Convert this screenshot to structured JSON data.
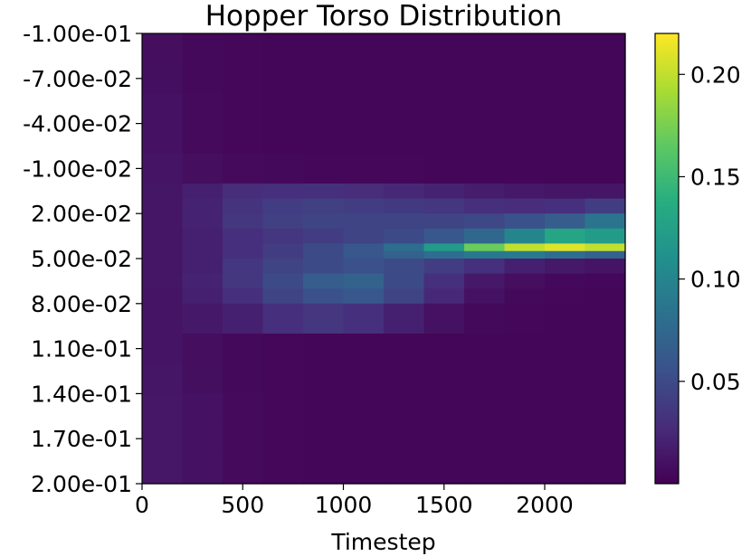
{
  "chart_data": {
    "type": "heatmap",
    "title": "Hopper Torso Distribution",
    "xlabel": "Timestep",
    "ylabel": "",
    "xlim": [
      0,
      2400
    ],
    "ylim": [
      -0.1,
      0.2
    ],
    "x_ticks": [
      {
        "value": 0,
        "label": "0"
      },
      {
        "value": 500,
        "label": "500"
      },
      {
        "value": 1000,
        "label": "1000"
      },
      {
        "value": 1500,
        "label": "1500"
      },
      {
        "value": 2000,
        "label": "2000"
      }
    ],
    "y_ticks": [
      {
        "value": -0.1,
        "label": "-1.00e-01"
      },
      {
        "value": -0.07,
        "label": "-7.00e-02"
      },
      {
        "value": -0.04,
        "label": "-4.00e-02"
      },
      {
        "value": -0.01,
        "label": "-1.00e-02"
      },
      {
        "value": 0.02,
        "label": "2.00e-02"
      },
      {
        "value": 0.05,
        "label": "5.00e-02"
      },
      {
        "value": 0.08,
        "label": "8.00e-02"
      },
      {
        "value": 0.11,
        "label": "1.10e-01"
      },
      {
        "value": 0.14,
        "label": "1.40e-01"
      },
      {
        "value": 0.17,
        "label": "1.70e-01"
      },
      {
        "value": 0.2,
        "label": "2.00e-01"
      }
    ],
    "colorbar": {
      "colormap": "viridis",
      "range": [
        0.0,
        0.22
      ],
      "ticks": [
        {
          "value": 0.05,
          "label": "0.05"
        },
        {
          "value": 0.1,
          "label": "0.10"
        },
        {
          "value": 0.15,
          "label": "0.15"
        },
        {
          "value": 0.2,
          "label": "0.20"
        }
      ]
    },
    "x_bins": [
      0,
      200,
      400,
      600,
      800,
      1000,
      1200,
      1400,
      1600,
      1800,
      2000,
      2200,
      2400
    ],
    "y_bins": [
      -0.1,
      -0.08,
      -0.06,
      -0.04,
      -0.02,
      0.0,
      0.01,
      0.02,
      0.03,
      0.04,
      0.045,
      0.05,
      0.06,
      0.07,
      0.08,
      0.1,
      0.12,
      0.14,
      0.16,
      0.18,
      0.2
    ],
    "values": [
      [
        0.008,
        0.005,
        0.004,
        0.003,
        0.003,
        0.003,
        0.003,
        0.003,
        0.003,
        0.003,
        0.003,
        0.003
      ],
      [
        0.009,
        0.005,
        0.004,
        0.003,
        0.003,
        0.003,
        0.003,
        0.003,
        0.003,
        0.003,
        0.003,
        0.003
      ],
      [
        0.01,
        0.006,
        0.004,
        0.003,
        0.003,
        0.003,
        0.003,
        0.003,
        0.003,
        0.003,
        0.003,
        0.003
      ],
      [
        0.01,
        0.006,
        0.004,
        0.003,
        0.003,
        0.003,
        0.003,
        0.003,
        0.003,
        0.003,
        0.003,
        0.003
      ],
      [
        0.012,
        0.008,
        0.006,
        0.005,
        0.004,
        0.004,
        0.004,
        0.003,
        0.003,
        0.003,
        0.003,
        0.003
      ],
      [
        0.013,
        0.02,
        0.028,
        0.03,
        0.03,
        0.028,
        0.025,
        0.022,
        0.018,
        0.015,
        0.013,
        0.013
      ],
      [
        0.013,
        0.022,
        0.033,
        0.04,
        0.042,
        0.04,
        0.038,
        0.035,
        0.03,
        0.028,
        0.03,
        0.04
      ],
      [
        0.013,
        0.022,
        0.035,
        0.042,
        0.045,
        0.045,
        0.045,
        0.045,
        0.048,
        0.055,
        0.065,
        0.085
      ],
      [
        0.013,
        0.02,
        0.03,
        0.035,
        0.04,
        0.045,
        0.05,
        0.06,
        0.075,
        0.1,
        0.13,
        0.12
      ],
      [
        0.013,
        0.02,
        0.03,
        0.04,
        0.05,
        0.06,
        0.08,
        0.12,
        0.17,
        0.2,
        0.21,
        0.2
      ],
      [
        0.013,
        0.02,
        0.03,
        0.04,
        0.05,
        0.06,
        0.07,
        0.08,
        0.09,
        0.09,
        0.08,
        0.07
      ],
      [
        0.013,
        0.02,
        0.035,
        0.045,
        0.05,
        0.055,
        0.05,
        0.04,
        0.03,
        0.02,
        0.015,
        0.012
      ],
      [
        0.013,
        0.022,
        0.035,
        0.05,
        0.065,
        0.07,
        0.05,
        0.03,
        0.015,
        0.008,
        0.005,
        0.004
      ],
      [
        0.012,
        0.02,
        0.03,
        0.045,
        0.055,
        0.06,
        0.045,
        0.025,
        0.01,
        0.005,
        0.004,
        0.003
      ],
      [
        0.012,
        0.015,
        0.02,
        0.03,
        0.035,
        0.03,
        0.02,
        0.01,
        0.005,
        0.004,
        0.003,
        0.003
      ],
      [
        0.012,
        0.008,
        0.005,
        0.004,
        0.003,
        0.003,
        0.003,
        0.003,
        0.003,
        0.003,
        0.003,
        0.003
      ],
      [
        0.013,
        0.009,
        0.005,
        0.004,
        0.003,
        0.003,
        0.003,
        0.003,
        0.003,
        0.003,
        0.003,
        0.003
      ],
      [
        0.014,
        0.01,
        0.006,
        0.004,
        0.003,
        0.003,
        0.003,
        0.003,
        0.003,
        0.003,
        0.003,
        0.003
      ],
      [
        0.014,
        0.01,
        0.006,
        0.004,
        0.003,
        0.003,
        0.003,
        0.003,
        0.003,
        0.003,
        0.003,
        0.003
      ],
      [
        0.014,
        0.01,
        0.006,
        0.004,
        0.003,
        0.003,
        0.003,
        0.003,
        0.003,
        0.003,
        0.003,
        0.003
      ]
    ]
  }
}
